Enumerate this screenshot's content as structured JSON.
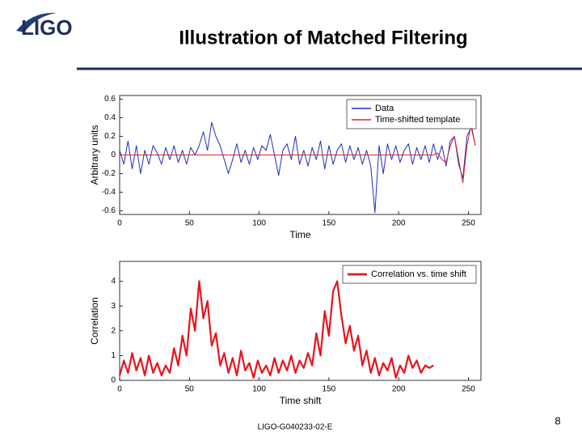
{
  "slide": {
    "logo": "LIGO",
    "title": "Illustration of Matched Filtering",
    "footer": "LIGO-G040233-02-E",
    "page_number": "8"
  },
  "chart_data": [
    {
      "type": "line",
      "xlabel": "Time",
      "ylabel": "Arbitrary units",
      "xlim": [
        0,
        259
      ],
      "ylim": [
        -0.64,
        0.64
      ],
      "xticks": [
        0,
        50,
        100,
        150,
        200,
        250
      ],
      "yticks": [
        -0.6,
        -0.4,
        -0.2,
        0,
        0.2,
        0.4,
        0.6
      ],
      "legend": "upper right",
      "series": [
        {
          "name": "Data",
          "color": "#1f2fb8",
          "x": [
            0,
            3,
            6,
            9,
            12,
            15,
            18,
            21,
            24,
            27,
            30,
            33,
            36,
            39,
            42,
            45,
            48,
            51,
            54,
            57,
            60,
            63,
            66,
            69,
            72,
            75,
            78,
            81,
            84,
            87,
            90,
            93,
            96,
            99,
            102,
            105,
            108,
            111,
            114,
            117,
            120,
            123,
            126,
            129,
            132,
            135,
            138,
            141,
            144,
            147,
            150,
            153,
            156,
            159,
            162,
            165,
            168,
            171,
            174,
            177,
            180,
            183,
            186,
            189,
            192,
            195,
            198,
            201,
            204,
            207,
            210,
            213,
            216,
            219,
            222,
            225,
            228,
            231,
            234,
            237,
            240,
            243,
            246,
            249,
            252,
            255
          ],
          "values": [
            0.05,
            -0.1,
            0.15,
            -0.15,
            0.1,
            -0.2,
            0.05,
            -0.1,
            0.1,
            0.02,
            -0.1,
            0.08,
            -0.05,
            0.1,
            -0.08,
            0.05,
            -0.1,
            0.08,
            0,
            0.1,
            0.25,
            0.05,
            0.35,
            0.2,
            0.1,
            -0.05,
            -0.2,
            -0.05,
            0.12,
            -0.08,
            0.05,
            -0.1,
            0.08,
            -0.05,
            0.1,
            0.05,
            0.22,
            0,
            -0.22,
            0.05,
            0.12,
            -0.05,
            0.2,
            -0.1,
            0.05,
            -0.12,
            0.08,
            -0.05,
            0.15,
            -0.15,
            0.1,
            -0.1,
            0.05,
            0.12,
            -0.08,
            0.1,
            -0.05,
            0.08,
            -0.1,
            0.05,
            -0.12,
            -0.62,
            0.1,
            -0.2,
            0.12,
            -0.05,
            0.1,
            -0.08,
            0.05,
            0.12,
            -0.1,
            0.08,
            -0.05,
            0.1,
            -0.08,
            0.12,
            -0.05,
            0.1,
            -0.12,
            0.15,
            0.2,
            -0.1,
            -0.25,
            0.2,
            0.3,
            0.1
          ]
        },
        {
          "name": "Time-shifted template",
          "color": "#e02020",
          "x": [
            0,
            225,
            228,
            231,
            234,
            237,
            240,
            243,
            246,
            249,
            252,
            255
          ],
          "values": [
            0,
            0,
            0.02,
            -0.05,
            -0.08,
            0.1,
            0.2,
            -0.05,
            -0.3,
            0.1,
            0.33,
            0.1
          ]
        }
      ]
    },
    {
      "type": "line",
      "xlabel": "Time shift",
      "ylabel": "Correlation",
      "xlim": [
        0,
        259
      ],
      "ylim": [
        0,
        4.8
      ],
      "xticks": [
        0,
        50,
        100,
        150,
        200,
        250
      ],
      "yticks": [
        0,
        1,
        2,
        3,
        4
      ],
      "legend": "upper right",
      "series": [
        {
          "name": "Correlation vs. time shift",
          "color": "#e8141c",
          "x": [
            0,
            3,
            6,
            9,
            12,
            15,
            18,
            21,
            24,
            27,
            30,
            33,
            36,
            39,
            42,
            45,
            48,
            51,
            54,
            57,
            60,
            63,
            66,
            69,
            72,
            75,
            78,
            81,
            84,
            87,
            90,
            93,
            96,
            99,
            102,
            105,
            108,
            111,
            114,
            117,
            120,
            123,
            126,
            129,
            132,
            135,
            138,
            141,
            144,
            147,
            150,
            153,
            156,
            159,
            162,
            165,
            168,
            171,
            174,
            177,
            180,
            183,
            186,
            189,
            192,
            195,
            198,
            201,
            204,
            207,
            210,
            213,
            216,
            219,
            222,
            225
          ],
          "values": [
            0.2,
            0.8,
            0.3,
            1.1,
            0.4,
            0.9,
            0.2,
            1.0,
            0.3,
            0.7,
            0.2,
            0.6,
            0.3,
            1.3,
            0.6,
            1.8,
            1.0,
            2.9,
            2.0,
            4.0,
            2.5,
            3.2,
            1.4,
            1.9,
            0.6,
            1.1,
            0.3,
            0.9,
            0.2,
            1.2,
            0.4,
            0.7,
            0.1,
            0.8,
            0.3,
            0.6,
            0.2,
            0.9,
            0.3,
            0.8,
            0.4,
            1.0,
            0.3,
            0.8,
            0.5,
            1.1,
            0.6,
            1.9,
            1.0,
            2.8,
            1.8,
            3.6,
            4.0,
            2.6,
            1.5,
            2.2,
            1.2,
            1.8,
            0.6,
            1.2,
            0.3,
            0.9,
            0.2,
            0.7,
            0.4,
            0.9,
            0.1,
            0.6,
            0.3,
            1.0,
            0.5,
            0.8,
            0.3,
            0.6,
            0.5,
            0.6
          ]
        }
      ]
    }
  ]
}
